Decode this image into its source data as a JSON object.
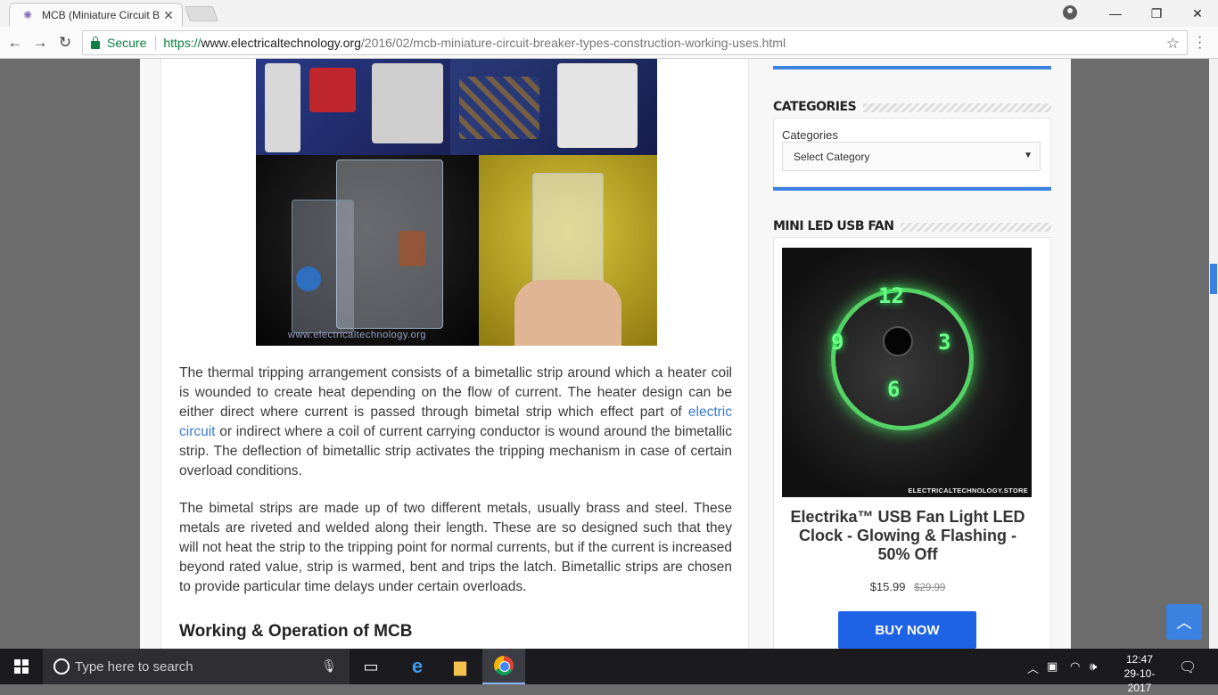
{
  "browser": {
    "tab_title": "MCB (Miniature Circuit B",
    "tab_close": "✕",
    "secure_label": "Secure",
    "url_proto": "https://",
    "url_host": "www.electricaltechnology.org",
    "url_path": "/2016/02/mcb-miniature-circuit-breaker-types-construction-working-uses.html",
    "window_buttons": {
      "minimize": "—",
      "maximize": "❐",
      "close": "✕"
    }
  },
  "article": {
    "image_watermark": "www.electricaltechnology.org",
    "para1_a": "The thermal tripping arrangement consists of a bimetallic strip around which a heater coil is wounded to create heat depending on the flow of current. The heater design can be either direct where current is passed through bimetal strip which effect part of ",
    "para1_link": "electric circuit",
    "para1_b": " or indirect where a coil of current carrying conductor is wound around the bimetallic strip. The deflection of bimetallic strip activates the tripping mechanism in case of certain overload conditions.",
    "para2": "The bimetal strips are made up of two different metals, usually brass and steel. These metals are riveted and welded along their length. These are so designed such that they will not heat the strip to the tripping point for normal currents, but if the current is increased beyond rated value, strip is warmed, bent and trips the latch. Bimetallic strips are chosen to provide particular time delays under certain overloads.",
    "heading": "Working & Operation of MCB"
  },
  "sidebar": {
    "categories_title": "CATEGORIES",
    "categories_label": "Categories",
    "categories_select": "Select Category",
    "fan_title": "MINI LED USB FAN",
    "fan_clock_numbers": [
      "12",
      "9",
      "3",
      "6"
    ],
    "fan_brand": "ELECTRICALTECHNOLOGY.STORE",
    "product_title": "Electrika™ USB Fan Light LED Clock - Glowing & Flashing - 50% Off",
    "price_now": "$15.99",
    "price_old": "$29.99",
    "buy_label": "BUY NOW"
  },
  "taskbar": {
    "search_placeholder": "Type here to search",
    "time": "12:47",
    "date": "29-10-2017"
  },
  "colors": {
    "accent": "#3b82e0",
    "buy_button": "#1e63e6",
    "secure_green": "#0b8043",
    "link": "#3a7bd5"
  }
}
